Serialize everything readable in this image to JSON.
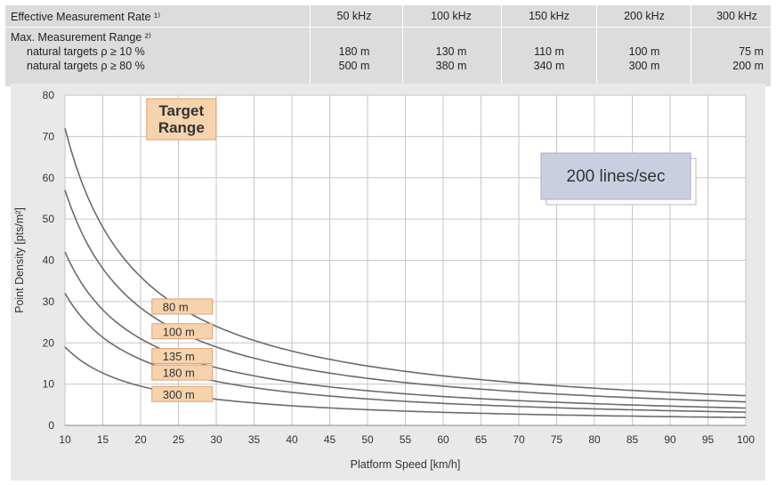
{
  "spec_table": {
    "header_label": "Effective Measurement Rate ¹⁾",
    "columns": [
      "50 kHz",
      "100 kHz",
      "150 kHz",
      "200 kHz",
      "300 kHz"
    ],
    "section_label": "Max. Measurement Range ²⁾",
    "rows": [
      {
        "label": "natural targets ρ  ≥ 10 %",
        "values": [
          "180 m",
          "130 m",
          "110 m",
          "100 m",
          "75 m"
        ]
      },
      {
        "label": "natural targets ρ  ≥ 80 %",
        "values": [
          "500 m",
          "380 m",
          "340 m",
          "300 m",
          "200 m"
        ]
      }
    ]
  },
  "chart_data": {
    "type": "line",
    "title": "",
    "xlabel": "Platform Speed [km/h]",
    "ylabel": "Point Density [pts/m²]",
    "xlim": [
      10,
      100
    ],
    "ylim": [
      0,
      80
    ],
    "xticks": [
      "10",
      "15",
      "20",
      "25",
      "30",
      "35",
      "40",
      "45",
      "50",
      "55",
      "60",
      "65",
      "70",
      "75",
      "80",
      "85",
      "90",
      "95",
      "100"
    ],
    "yticks": [
      "0",
      "10",
      "20",
      "30",
      "40",
      "50",
      "60",
      "70",
      "80"
    ],
    "grid": true,
    "legend_title": "Target Range",
    "annotation": "200 lines/sec",
    "series": [
      {
        "name": "80 m",
        "x": [
          10,
          15,
          20,
          25,
          30,
          40,
          50,
          60,
          70,
          80,
          90,
          100
        ],
        "y": [
          72,
          48,
          36,
          28.8,
          24,
          18,
          14.4,
          12,
          10.3,
          9,
          8,
          7.2
        ]
      },
      {
        "name": "100 m",
        "x": [
          10,
          15,
          20,
          25,
          30,
          40,
          50,
          60,
          70,
          80,
          90,
          100
        ],
        "y": [
          57,
          38,
          28.5,
          22.8,
          19,
          14.3,
          11.4,
          9.5,
          8.1,
          7.1,
          6.3,
          5.7
        ]
      },
      {
        "name": "135 m",
        "x": [
          10,
          15,
          20,
          25,
          30,
          40,
          50,
          60,
          70,
          80,
          90,
          100
        ],
        "y": [
          42,
          28,
          21,
          16.8,
          14,
          10.5,
          8.4,
          7,
          6,
          5.3,
          4.7,
          4.2
        ]
      },
      {
        "name": "180 m",
        "x": [
          10,
          15,
          20,
          25,
          30,
          40,
          50,
          60,
          70,
          80,
          90,
          100
        ],
        "y": [
          32,
          21.3,
          16,
          12.8,
          10.7,
          8,
          6.4,
          5.3,
          4.6,
          4,
          3.6,
          3.2
        ]
      },
      {
        "name": "300 m",
        "x": [
          10,
          15,
          20,
          25,
          30,
          40,
          50,
          60,
          70,
          80,
          90,
          100
        ],
        "y": [
          19,
          12.7,
          9.5,
          7.6,
          6.3,
          4.8,
          3.8,
          3.2,
          2.7,
          2.4,
          2.1,
          1.9
        ]
      }
    ],
    "colors": {
      "line": "#6b6b6b",
      "label_fill": "#f6d3ad",
      "label_stroke": "#e0a070",
      "annotation_fill": "#c9cfe0",
      "annotation_shadow": "#ffffff",
      "plot_bg": "#ffffff",
      "grid": "#c6c6c6",
      "panel_bg": "#e9e9e9"
    }
  }
}
